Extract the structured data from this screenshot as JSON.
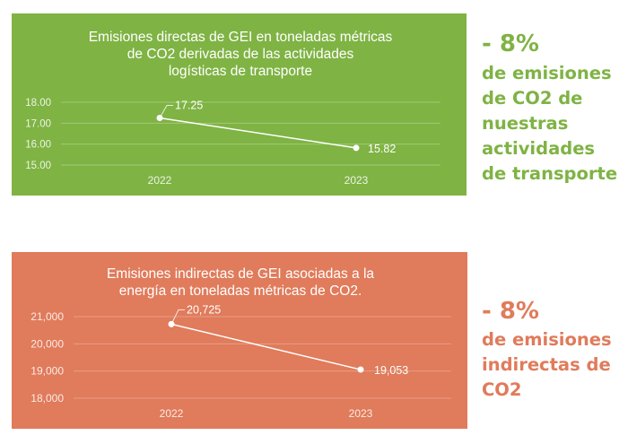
{
  "colors": {
    "green": "#7fb344",
    "coral": "#e07b5b",
    "line": "#ffffff",
    "tick": "#e8f2dc"
  },
  "chart_data": [
    {
      "type": "line",
      "title": "Emisiones directas de GEI en toneladas métricas\nde CO2 derivadas de las actividades\nlogísticas de transporte",
      "categories": [
        "2022",
        "2023"
      ],
      "series": [
        {
          "values": [
            17.25,
            15.82
          ]
        }
      ],
      "data_labels": [
        "17.25",
        "15.82"
      ],
      "yticks": [
        15,
        16,
        17,
        18
      ],
      "ytick_labels": [
        "15.00",
        "16.00",
        "17.00",
        "18.00"
      ],
      "ylim": [
        15,
        18
      ],
      "xlabel": "",
      "ylabel": "",
      "grid": true,
      "background": "#7fb344"
    },
    {
      "type": "line",
      "title": "Emisiones indirectas de GEI asociadas a la\nenergía  en toneladas métricas de CO2.",
      "categories": [
        "2022",
        "2023"
      ],
      "series": [
        {
          "values": [
            20725,
            19053
          ]
        }
      ],
      "data_labels": [
        "20,725",
        "19,053"
      ],
      "yticks": [
        18000,
        19000,
        20000,
        21000
      ],
      "ytick_labels": [
        "18,000",
        "19,000",
        "20,000",
        "21,000"
      ],
      "ylim": [
        18000,
        21000
      ],
      "xlabel": "",
      "ylabel": "",
      "grid": true,
      "background": "#e07b5b"
    }
  ],
  "callouts": [
    {
      "big": "- 8%",
      "body": "de emisiones\nde CO2  de\nnuestras\nactividades\nde transporte"
    },
    {
      "big": "- 8%",
      "body": "de  emisiones\nindirectas de\nCO2"
    }
  ]
}
